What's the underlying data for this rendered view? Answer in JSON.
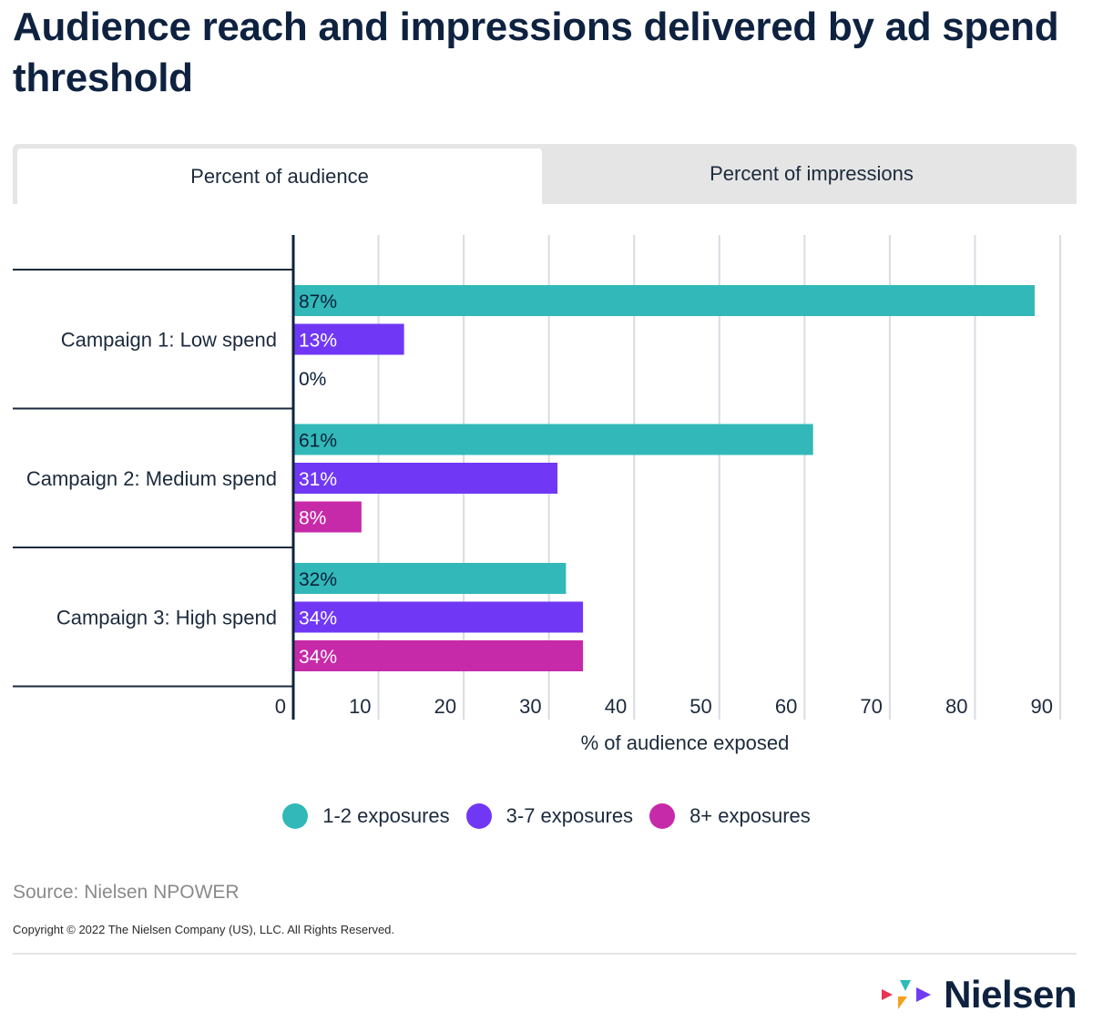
{
  "title": "Audience reach and impressions delivered by ad spend threshold",
  "tabs": [
    {
      "label": "Percent of audience",
      "active": true
    },
    {
      "label": "Percent of impressions",
      "active": false
    }
  ],
  "chart_data": {
    "type": "bar",
    "orientation": "horizontal",
    "categories": [
      "Campaign 1: Low spend",
      "Campaign 2: Medium spend",
      "Campaign 3: High spend"
    ],
    "series": [
      {
        "name": "1-2 exposures",
        "color": "#32b8b8",
        "values": [
          87,
          61,
          32
        ],
        "labels": [
          "87%",
          "61%",
          "32%"
        ]
      },
      {
        "name": "3-7 exposures",
        "color": "#7038f5",
        "values": [
          13,
          31,
          34
        ],
        "labels": [
          "13%",
          "31%",
          "34%"
        ]
      },
      {
        "name": "8+ exposures",
        "color": "#c62aa8",
        "values": [
          0,
          8,
          34
        ],
        "labels": [
          "0%",
          "8%",
          "34%"
        ]
      }
    ],
    "xlabel": "% of audience exposed",
    "xlim": [
      0,
      90
    ],
    "xticks": [
      0,
      10,
      20,
      30,
      40,
      50,
      60,
      70,
      80,
      90
    ],
    "grid": true,
    "legend_position": "bottom-center"
  },
  "source": "Source: Nielsen NPOWER",
  "copyright": "Copyright © 2022 The Nielsen Company (US), LLC. All Rights Reserved.",
  "logo": {
    "text": "Nielsen",
    "colors": [
      "#e8344e",
      "#f7a11a",
      "#2fb9b9",
      "#6f3cf4"
    ]
  }
}
